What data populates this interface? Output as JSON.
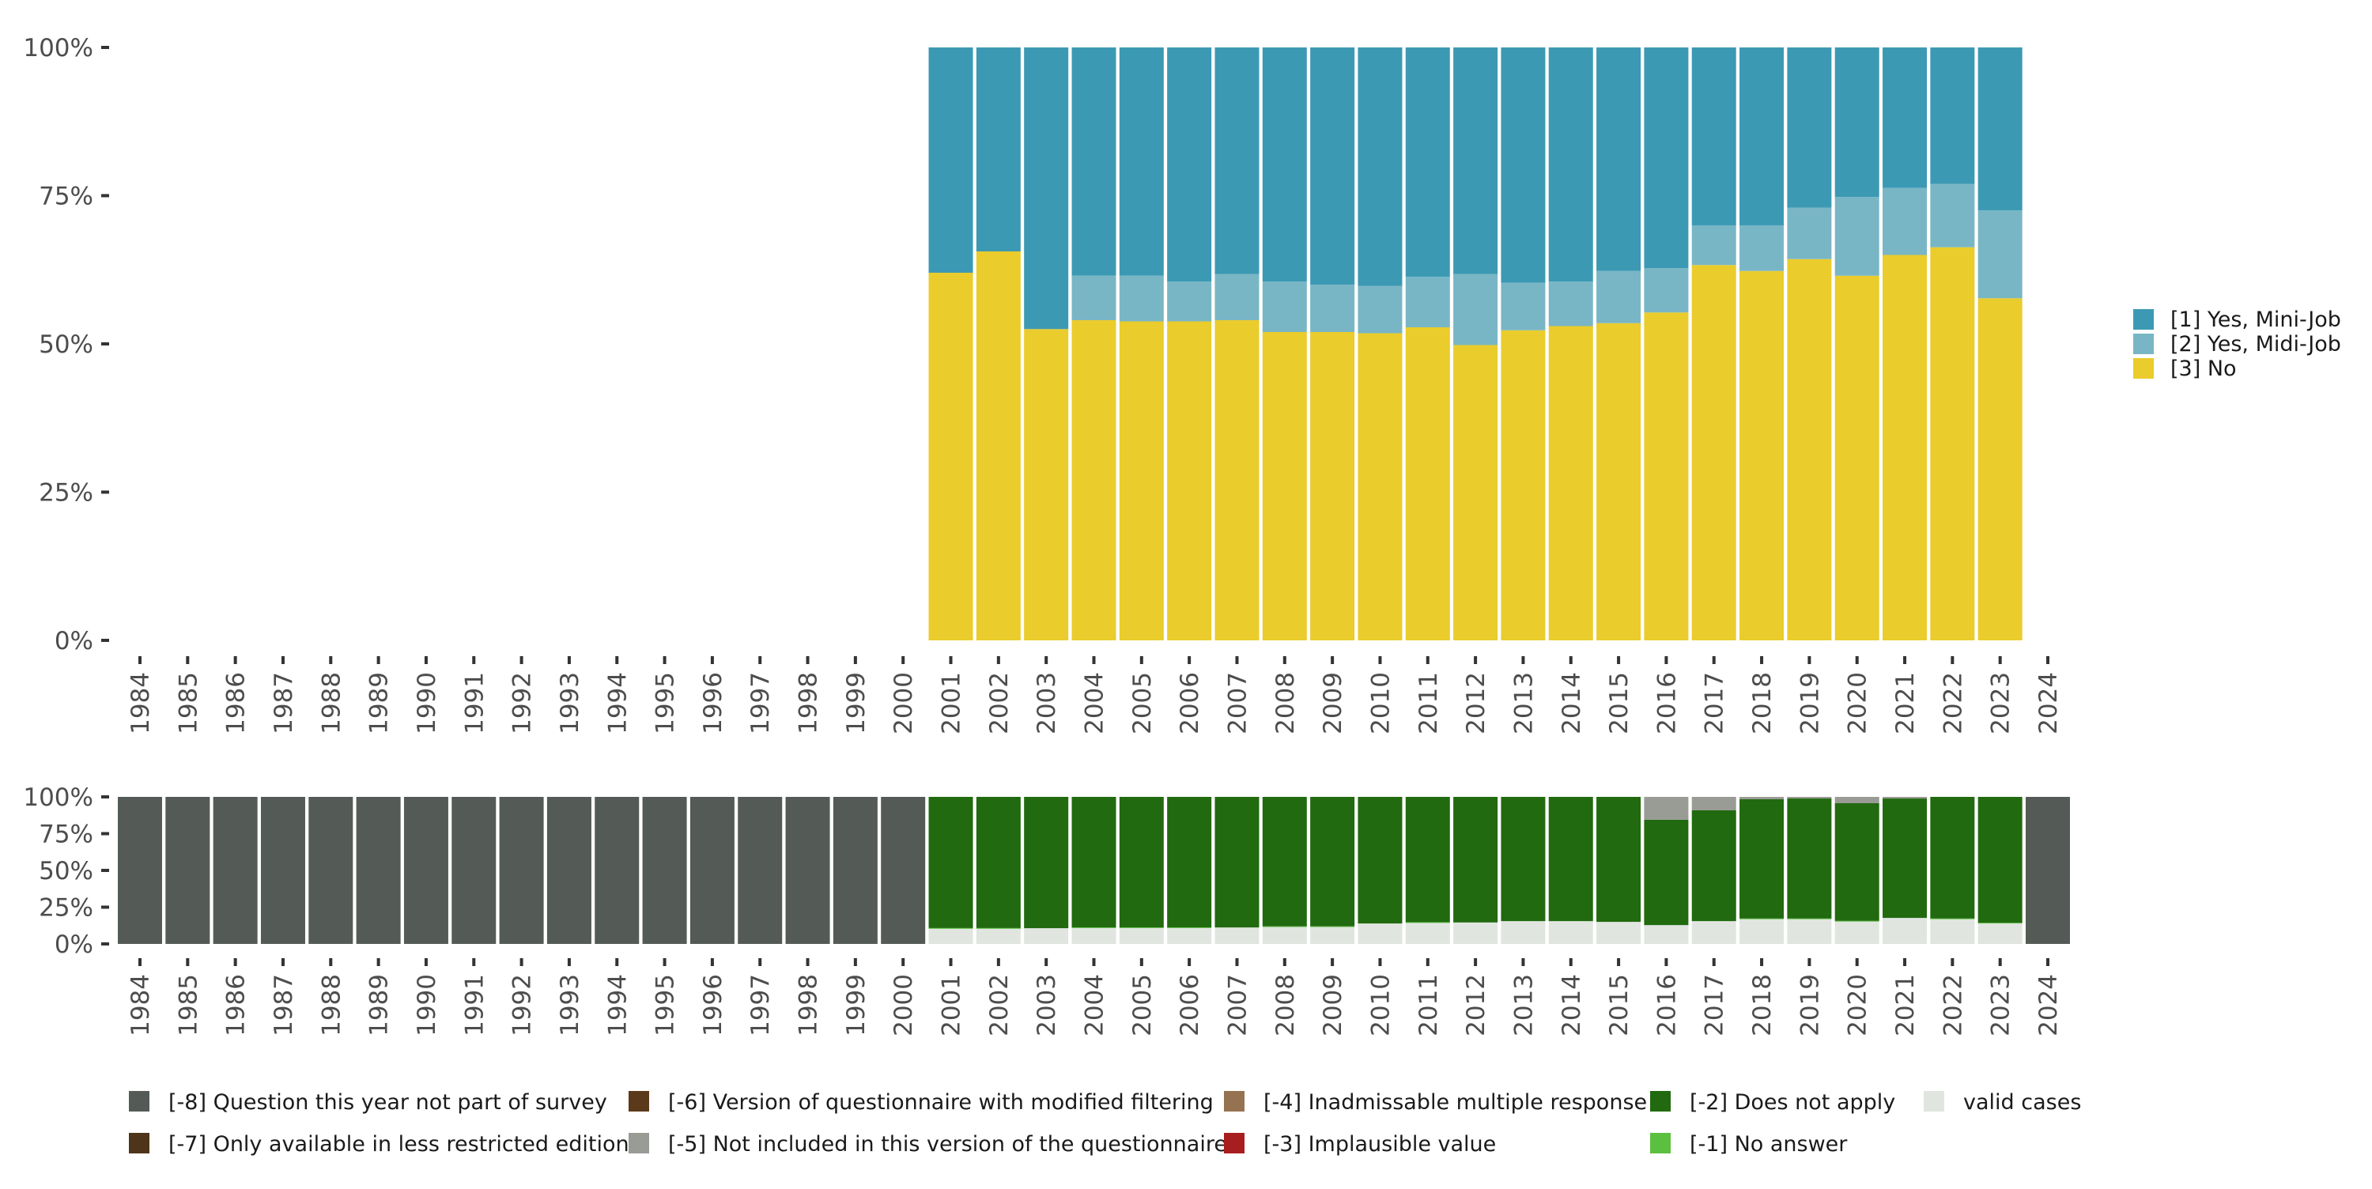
{
  "chart_data": [
    {
      "type": "bar",
      "stacked": true,
      "title": "",
      "xlabel": "",
      "ylabel": "",
      "ylim": [
        0,
        100
      ],
      "yticks": [
        "0%",
        "25%",
        "50%",
        "75%",
        "100%"
      ],
      "categories": [
        "1984",
        "1985",
        "1986",
        "1987",
        "1988",
        "1989",
        "1990",
        "1991",
        "1992",
        "1993",
        "1994",
        "1995",
        "1996",
        "1997",
        "1998",
        "1999",
        "2000",
        "2001",
        "2002",
        "2003",
        "2004",
        "2005",
        "2006",
        "2007",
        "2008",
        "2009",
        "2010",
        "2011",
        "2012",
        "2013",
        "2014",
        "2015",
        "2016",
        "2017",
        "2018",
        "2019",
        "2020",
        "2021",
        "2022",
        "2023",
        "2024"
      ],
      "legend_position": "right",
      "series": [
        {
          "name": "[3] No",
          "color": "#EACC2C",
          "values": [
            0,
            0,
            0,
            0,
            0,
            0,
            0,
            0,
            0,
            0,
            0,
            0,
            0,
            0,
            0,
            0,
            0,
            62,
            65.6,
            52.5,
            54,
            53.8,
            53.8,
            54,
            52,
            52,
            51.8,
            52.8,
            49.8,
            52.3,
            53,
            53.5,
            55.3,
            63.3,
            62.3,
            64.3,
            61.5,
            65,
            66.3,
            57.7,
            0
          ]
        },
        {
          "name": "[2] Yes, Midi-Job",
          "color": "#79B6C5",
          "values": [
            0,
            0,
            0,
            0,
            0,
            0,
            0,
            0,
            0,
            0,
            0,
            0,
            0,
            0,
            0,
            0,
            0,
            0,
            0,
            0,
            7.5,
            7.7,
            6.7,
            7.8,
            8.5,
            8,
            8,
            8.5,
            12,
            8,
            7.5,
            8.8,
            7.5,
            6.7,
            7.7,
            8.7,
            13.3,
            11.3,
            10.7,
            14.8,
            0
          ]
        },
        {
          "name": "[1] Yes, Mini-Job",
          "color": "#3C99B3",
          "values": [
            0,
            0,
            0,
            0,
            0,
            0,
            0,
            0,
            0,
            0,
            0,
            0,
            0,
            0,
            0,
            0,
            0,
            38,
            34.4,
            47.5,
            38.5,
            38.5,
            39.5,
            38.2,
            39.5,
            40,
            40.2,
            38.7,
            38.2,
            39.7,
            39.5,
            37.7,
            37.2,
            30,
            30,
            27,
            25.2,
            23.7,
            23,
            27.5,
            0
          ]
        }
      ]
    },
    {
      "type": "bar",
      "stacked": true,
      "title": "",
      "xlabel": "",
      "ylabel": "",
      "ylim": [
        0,
        100
      ],
      "yticks": [
        "0%",
        "25%",
        "50%",
        "75%",
        "100%"
      ],
      "categories": [
        "1984",
        "1985",
        "1986",
        "1987",
        "1988",
        "1989",
        "1990",
        "1991",
        "1992",
        "1993",
        "1994",
        "1995",
        "1996",
        "1997",
        "1998",
        "1999",
        "2000",
        "2001",
        "2002",
        "2003",
        "2004",
        "2005",
        "2006",
        "2007",
        "2008",
        "2009",
        "2010",
        "2011",
        "2012",
        "2013",
        "2014",
        "2015",
        "2016",
        "2017",
        "2018",
        "2019",
        "2020",
        "2021",
        "2022",
        "2023",
        "2024"
      ],
      "legend_position": "bottom",
      "series": [
        {
          "name": "valid cases",
          "color": "#E1E5E0",
          "values": [
            0,
            0,
            0,
            0,
            0,
            0,
            0,
            0,
            0,
            0,
            0,
            0,
            0,
            0,
            0,
            0,
            0,
            10.3,
            10.3,
            10.7,
            10.8,
            10.8,
            10.8,
            11.2,
            11.5,
            11.5,
            13.9,
            14.3,
            14.6,
            15.5,
            15.5,
            15,
            12.8,
            15.5,
            16.8,
            16.8,
            15.2,
            17.7,
            16.8,
            13.9,
            0
          ]
        },
        {
          "name": "[-1] No answer",
          "color": "#5BBF3F",
          "values": [
            0,
            0,
            0,
            0,
            0,
            0,
            0,
            0,
            0,
            0,
            0,
            0,
            0,
            0,
            0,
            0,
            0,
            0.5,
            0.5,
            0,
            0.5,
            0.5,
            0.5,
            0,
            0.5,
            0.5,
            0,
            0.5,
            0,
            0,
            0,
            0,
            0,
            0,
            0.5,
            0.5,
            0.5,
            0,
            0.5,
            0.5,
            0
          ]
        },
        {
          "name": "[-2] Does not apply",
          "color": "#216A0F",
          "values": [
            0,
            0,
            0,
            0,
            0,
            0,
            0,
            0,
            0,
            0,
            0,
            0,
            0,
            0,
            0,
            0,
            0,
            89.2,
            89.2,
            89.3,
            88.7,
            88.7,
            88.7,
            88.8,
            88,
            88,
            86.1,
            85.2,
            85.4,
            84.5,
            84.5,
            85,
            71.7,
            75.4,
            81.1,
            81.6,
            80,
            81.2,
            82.7,
            85.6,
            0
          ]
        },
        {
          "name": "[-5] Not included in this version of the questionnaire",
          "color": "#999B95",
          "values": [
            0,
            0,
            0,
            0,
            0,
            0,
            0,
            0,
            0,
            0,
            0,
            0,
            0,
            0,
            0,
            0,
            0,
            0,
            0,
            0,
            0,
            0,
            0,
            0,
            0,
            0,
            0,
            0,
            0,
            0,
            0,
            0,
            15.5,
            9.1,
            1.6,
            1.1,
            4.3,
            1.1,
            0,
            0,
            0
          ]
        },
        {
          "name": "[-8] Question this year not part of survey",
          "color": "#545B56",
          "values": [
            100,
            100,
            100,
            100,
            100,
            100,
            100,
            100,
            100,
            100,
            100,
            100,
            100,
            100,
            100,
            100,
            100,
            0,
            0,
            0,
            0,
            0,
            0,
            0,
            0,
            0,
            0,
            0,
            0,
            0,
            0,
            0,
            0,
            0,
            0,
            0,
            0,
            0,
            0,
            0,
            100
          ]
        }
      ],
      "legend": [
        {
          "name": "[-8] Question this year not part of survey",
          "color": "#545B56"
        },
        {
          "name": "[-6] Version of questionnaire with modified filtering",
          "color": "#5A3A1A"
        },
        {
          "name": "[-4] Inadmissable multiple response",
          "color": "#957350"
        },
        {
          "name": "[-2] Does not apply",
          "color": "#216A0F"
        },
        {
          "name": "valid cases",
          "color": "#E1E5E0"
        },
        {
          "name": "[-7] Only available in less restricted edition",
          "color": "#4E3418"
        },
        {
          "name": "[-5] Not included in this version of the questionnaire",
          "color": "#999B95"
        },
        {
          "name": "[-3] Implausible value",
          "color": "#A81E1E"
        },
        {
          "name": "[-1] No answer",
          "color": "#5BBF3F"
        }
      ]
    }
  ]
}
